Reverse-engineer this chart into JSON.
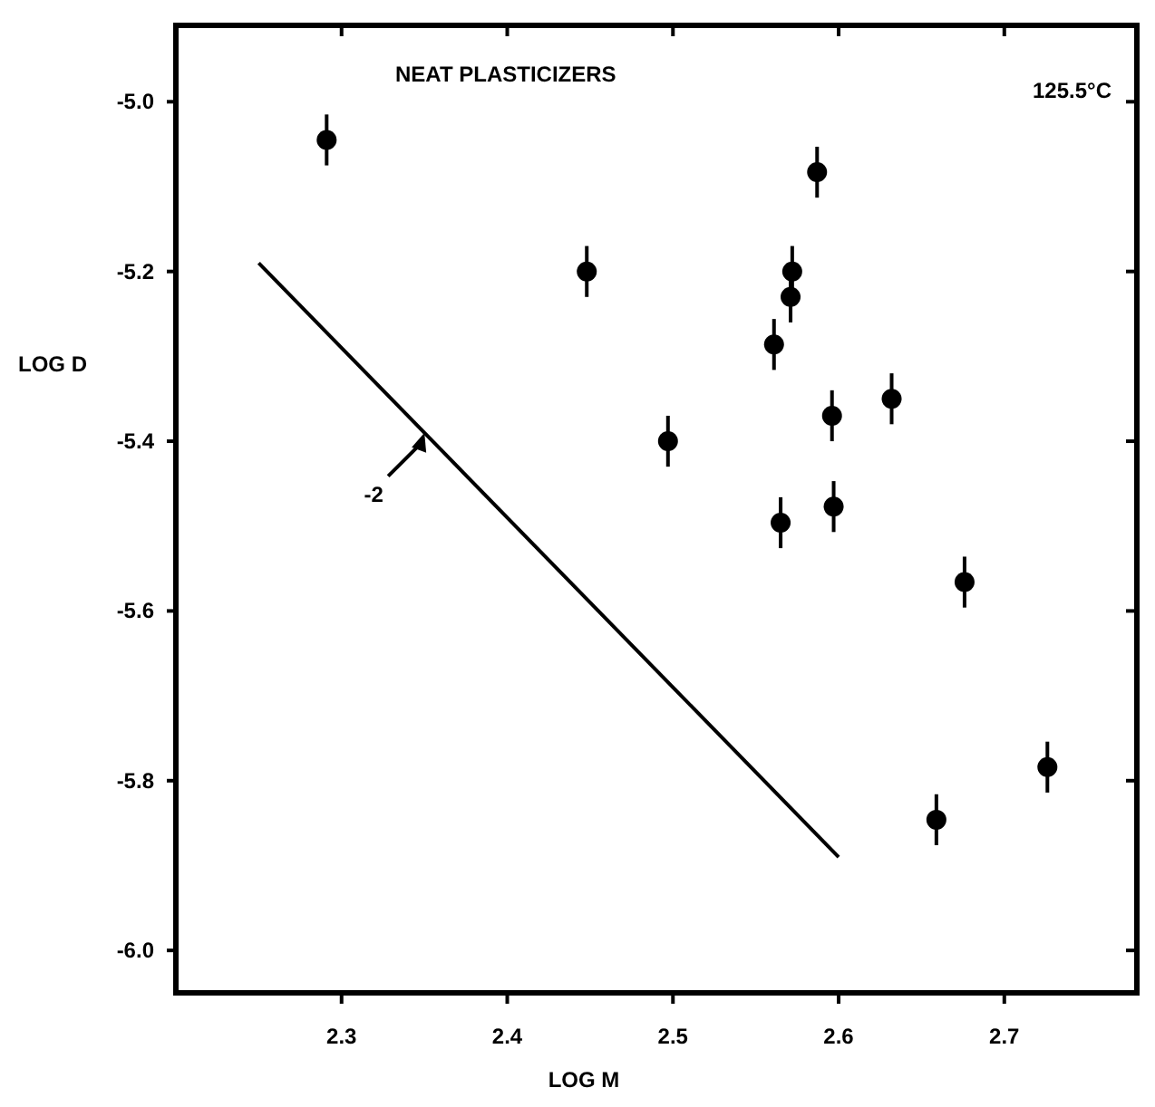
{
  "chart_data": {
    "type": "scatter",
    "title": "NEAT PLASTICIZERS",
    "xlabel": "LOG M",
    "ylabel": "LOG D",
    "xlim": [
      2.2,
      2.78
    ],
    "ylim": [
      -6.05,
      -4.91
    ],
    "xticks": [
      {
        "value": 2.3,
        "label": "2.3"
      },
      {
        "value": 2.4,
        "label": "2.4"
      },
      {
        "value": 2.5,
        "label": "2.5"
      },
      {
        "value": 2.6,
        "label": "2.6"
      },
      {
        "value": 2.7,
        "label": "2.7"
      }
    ],
    "yticks": [
      {
        "value": -5.0,
        "label": "-5.0"
      },
      {
        "value": -5.2,
        "label": "-5.2"
      },
      {
        "value": -5.4,
        "label": "-5.4"
      },
      {
        "value": -5.6,
        "label": "-5.6"
      },
      {
        "value": -5.8,
        "label": "-5.8"
      },
      {
        "value": -6.0,
        "label": "-6.0"
      }
    ],
    "grid": false,
    "marker": "circle",
    "series": [
      {
        "color": "#000000",
        "x": [
          2.291,
          2.448,
          2.497,
          2.587,
          2.572,
          2.571,
          2.561,
          2.596,
          2.632,
          2.565,
          2.597,
          2.676,
          2.659,
          2.726
        ],
        "values": [
          -5.045,
          -5.2,
          -5.4,
          -5.083,
          -5.2,
          -5.23,
          -5.286,
          -5.37,
          -5.35,
          -5.496,
          -5.477,
          -5.566,
          -5.846,
          -5.784
        ],
        "errors": [
          0.03,
          0.03,
          0.03,
          0.03,
          0.03,
          0.03,
          0.03,
          0.03,
          0.03,
          0.03,
          0.03,
          0.03,
          0.03,
          0.03
        ]
      },
      {
        "type": "line",
        "color": "#000000",
        "x": [
          2.25,
          2.6
        ],
        "values": [
          -5.19,
          -5.89
        ],
        "marker": "none",
        "line_style": "solid"
      }
    ],
    "annotations": [
      {
        "text": "-2",
        "x": 2.35,
        "y": -5.39
      },
      "125.5°C"
    ]
  }
}
